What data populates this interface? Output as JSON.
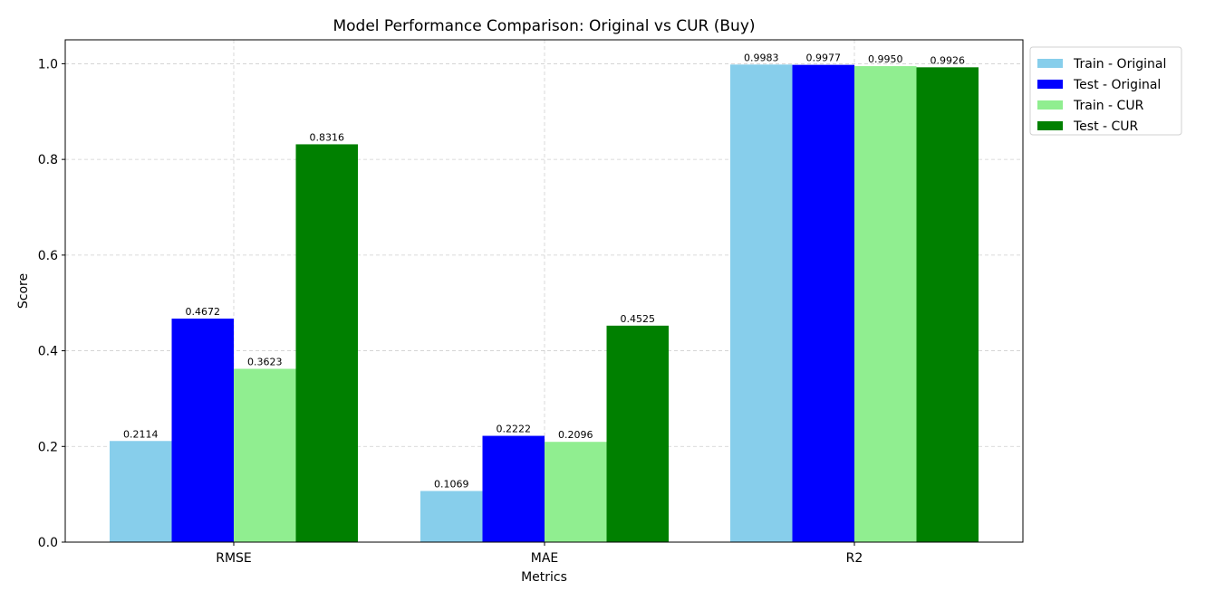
{
  "chart_data": {
    "type": "bar",
    "title": "Model Performance Comparison: Original vs CUR (Buy)",
    "xlabel": "Metrics",
    "ylabel": "Score",
    "categories": [
      "RMSE",
      "MAE",
      "R2"
    ],
    "ylim": [
      0,
      1.05
    ],
    "yticks": [
      "0.0",
      "0.2",
      "0.4",
      "0.6",
      "0.8",
      "1.0"
    ],
    "grid": true,
    "legend_position": "outside top-right",
    "series": [
      {
        "name": "Train - Original",
        "color": "#87ceeb",
        "values": [
          0.2114,
          0.1069,
          0.9983
        ],
        "labels": [
          "0.2114",
          "0.1069",
          "0.9983"
        ]
      },
      {
        "name": "Test - Original",
        "color": "#0000ff",
        "values": [
          0.4672,
          0.2222,
          0.9977
        ],
        "labels": [
          "0.4672",
          "0.2222",
          "0.9977"
        ]
      },
      {
        "name": "Train - CUR",
        "color": "#90ee90",
        "values": [
          0.3623,
          0.2096,
          0.995
        ],
        "labels": [
          "0.3623",
          "0.2096",
          "0.9950"
        ]
      },
      {
        "name": "Test - CUR",
        "color": "#008000",
        "values": [
          0.8316,
          0.4525,
          0.9926
        ],
        "labels": [
          "0.8316",
          "0.4525",
          "0.9926"
        ]
      }
    ]
  }
}
